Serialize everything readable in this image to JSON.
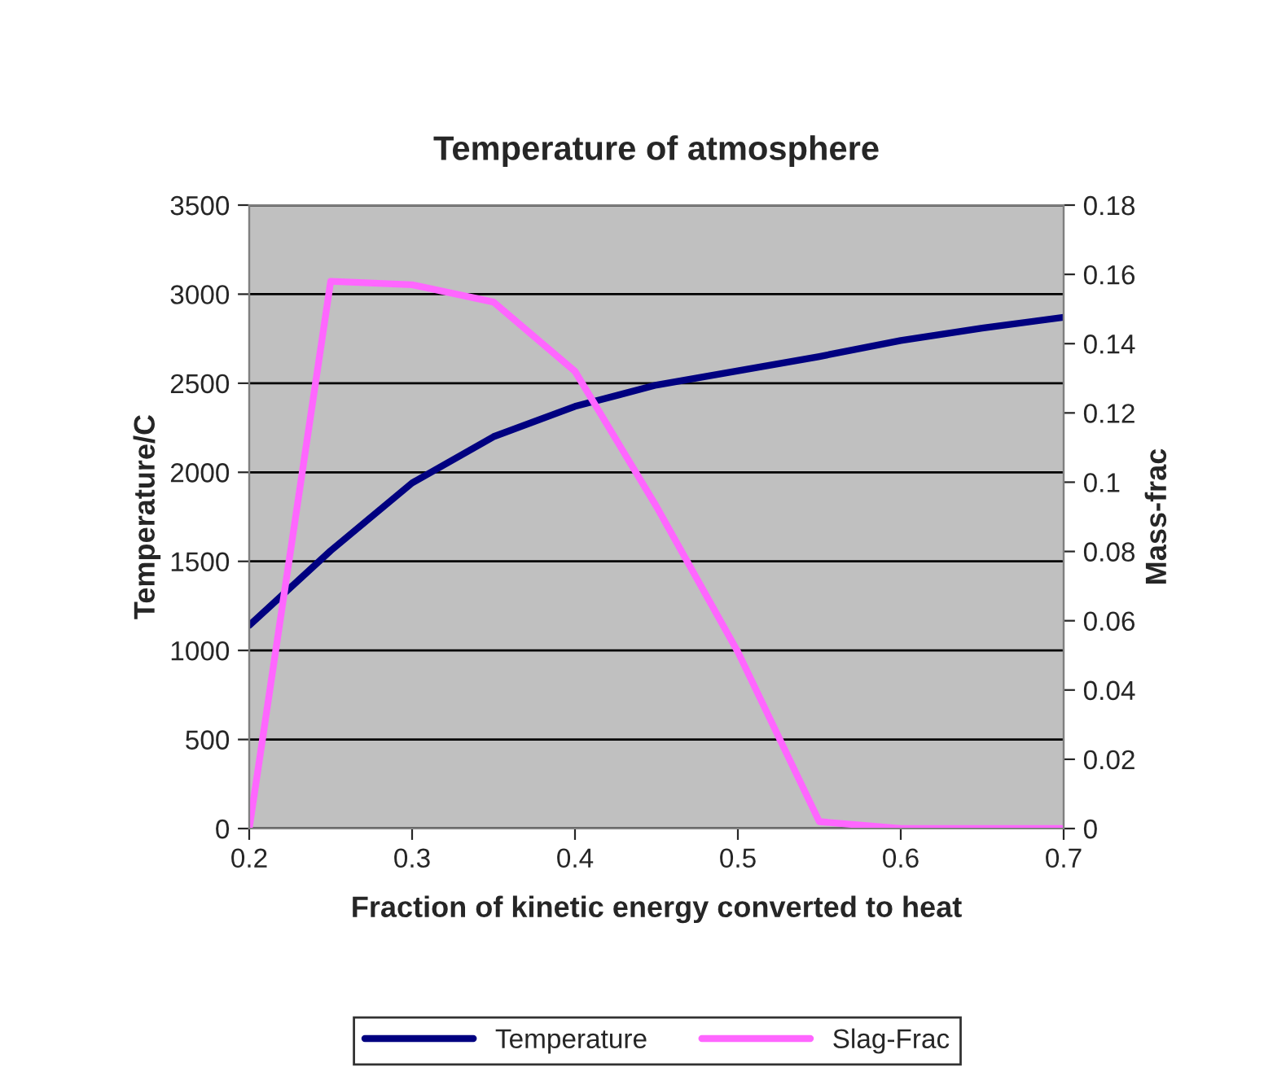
{
  "chart_data": {
    "type": "line",
    "title": "Temperature of atmosphere",
    "xlabel": "Fraction of kinetic energy converted to heat",
    "ylabel": "Temperature/C",
    "y2label": "Mass-frac",
    "x": [
      0.2,
      0.25,
      0.3,
      0.35,
      0.4,
      0.45,
      0.5,
      0.55,
      0.6,
      0.65,
      0.7
    ],
    "series": [
      {
        "name": "Temperature",
        "color": "#000080",
        "values": [
          1140,
          1560,
          1940,
          2200,
          2370,
          2490,
          2570,
          2650,
          2740,
          2810,
          2870
        ]
      },
      {
        "name": "Slag-Frac",
        "color": "#ff66ff",
        "axis": "y2",
        "values": [
          0,
          0.158,
          0.157,
          0.152,
          0.132,
          0.093,
          0.051,
          0.002,
          0,
          0,
          0
        ]
      }
    ],
    "xlim": [
      0.2,
      0.7
    ],
    "xticks": [
      0.2,
      0.3,
      0.4,
      0.5,
      0.6,
      0.7
    ],
    "ylim": [
      0,
      3500
    ],
    "yticks": [
      0,
      500,
      1000,
      1500,
      2000,
      2500,
      3000,
      3500
    ],
    "y2lim": [
      0,
      0.18
    ],
    "y2ticks": [
      0,
      0.02,
      0.04,
      0.06,
      0.08,
      0.1,
      0.12,
      0.14,
      0.16,
      0.18
    ],
    "grid": "y",
    "legend": "bottom",
    "marker": "none",
    "line_style": "solid"
  }
}
